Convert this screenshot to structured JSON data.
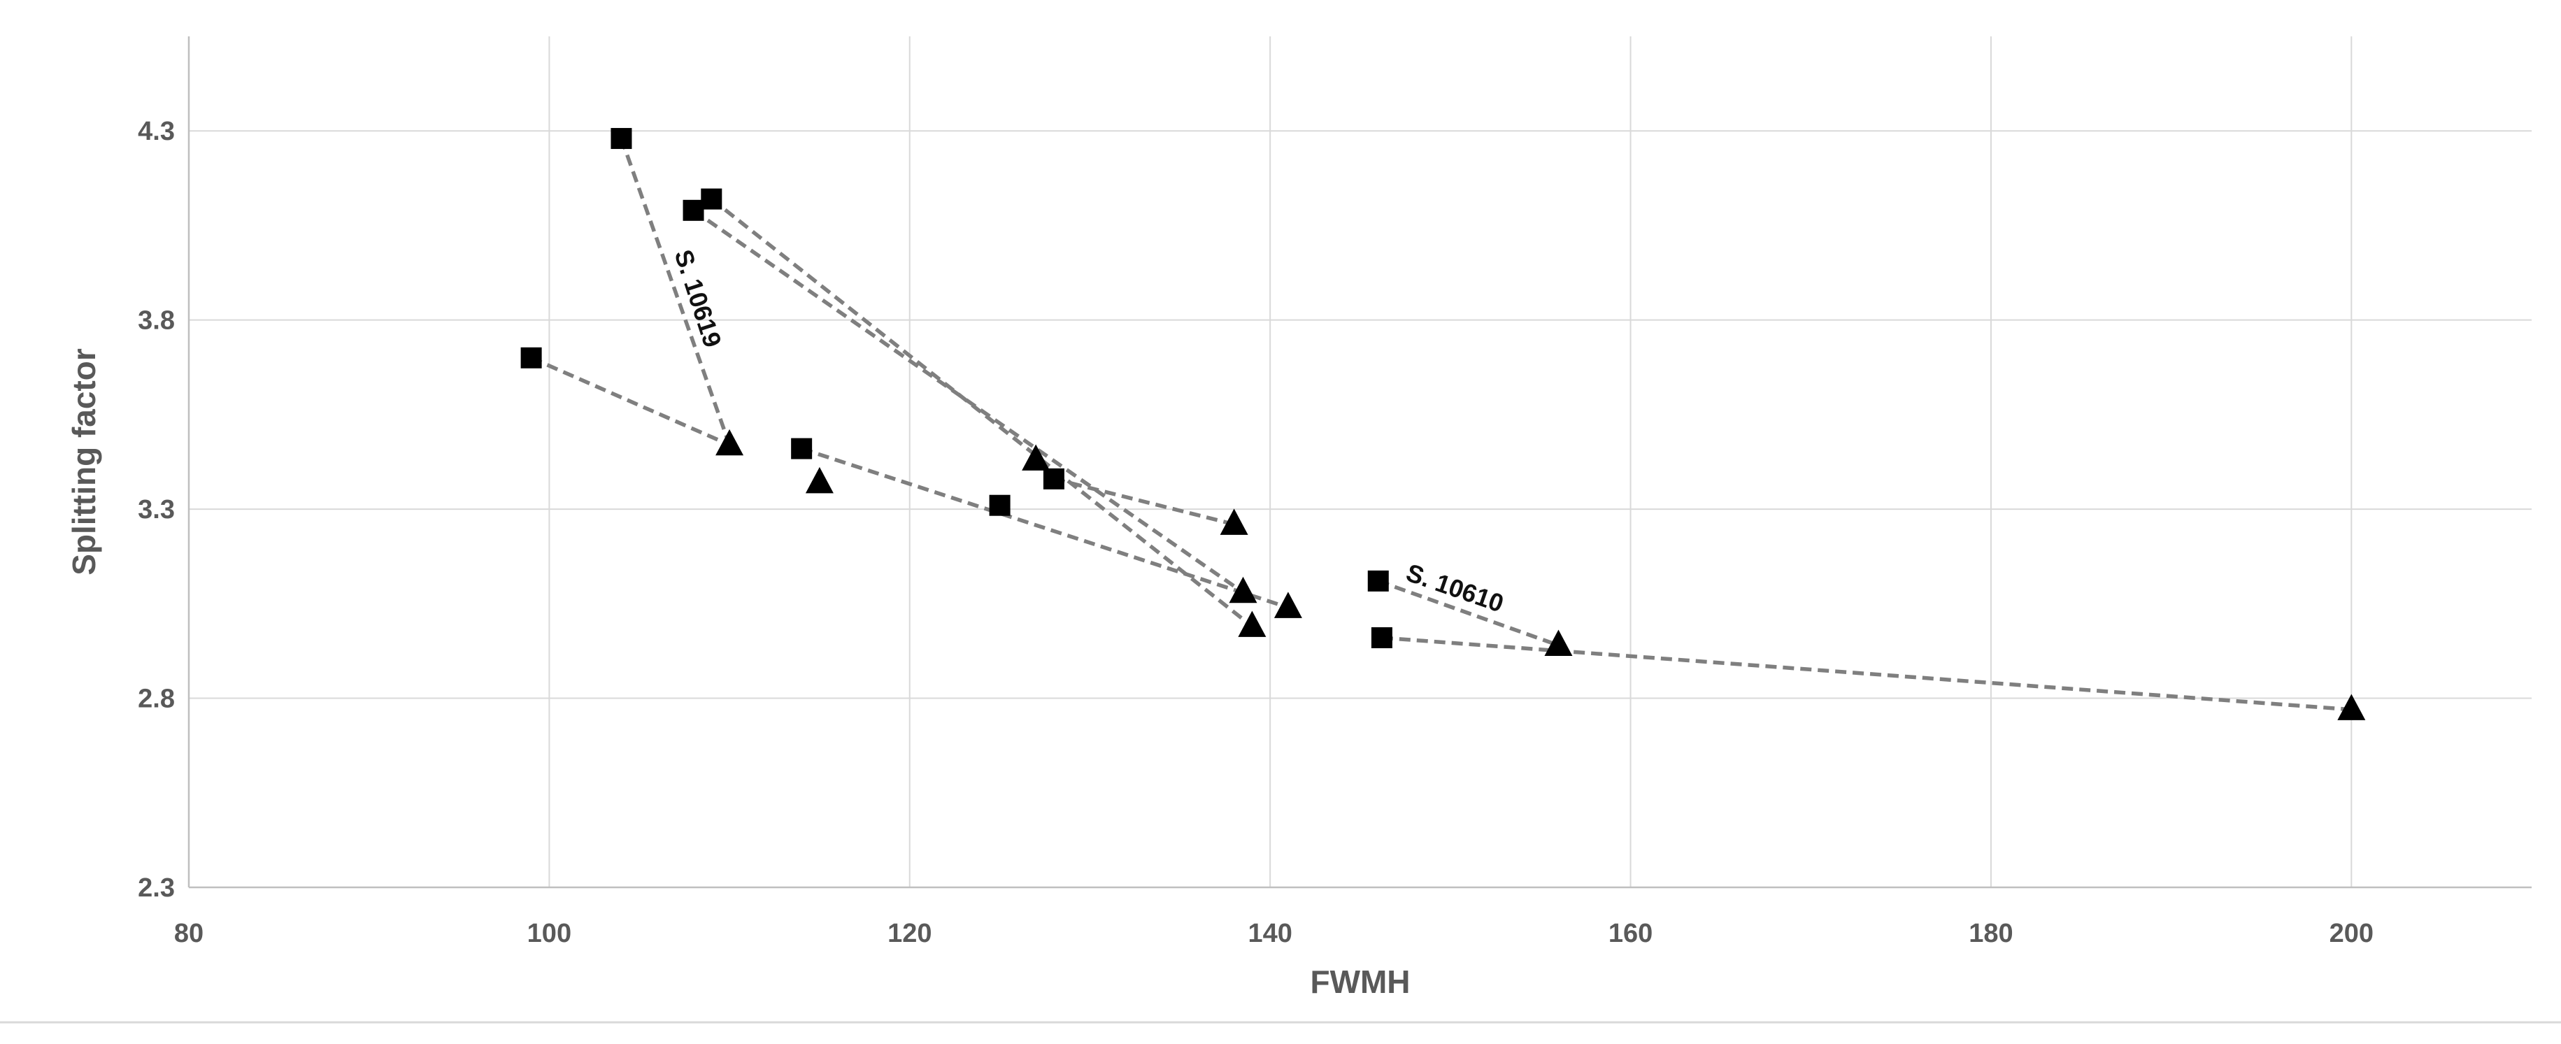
{
  "chart_data": {
    "type": "scatter",
    "title": "",
    "xlabel": "FWMH",
    "ylabel": "Splitting factor",
    "xlim": [
      80,
      210
    ],
    "ylim": [
      2.3,
      4.55
    ],
    "x_ticks": [
      80,
      100,
      120,
      140,
      160,
      180,
      200
    ],
    "y_ticks": [
      2.3,
      2.8,
      3.3,
      3.8,
      4.3
    ],
    "x_tick_labels": [
      "80",
      "100",
      "120",
      "140",
      "160",
      "180",
      "200"
    ],
    "y_tick_labels": [
      "2.3",
      "2.8",
      "3.3",
      "3.8",
      "4.3"
    ],
    "grid": true,
    "legend": "none",
    "marker_color": "#000000",
    "line_color": "#7f7f7f",
    "squares": [
      {
        "x": 99,
        "y": 3.7
      },
      {
        "x": 104,
        "y": 4.28
      },
      {
        "x": 108,
        "y": 4.09
      },
      {
        "x": 109,
        "y": 4.12
      },
      {
        "x": 114,
        "y": 3.46
      },
      {
        "x": 125,
        "y": 3.31
      },
      {
        "x": 128,
        "y": 3.38
      },
      {
        "x": 146,
        "y": 3.11
      },
      {
        "x": 146.2,
        "y": 2.96
      }
    ],
    "triangles": [
      {
        "x": 110,
        "y": 3.47
      },
      {
        "x": 115,
        "y": 3.37
      },
      {
        "x": 127,
        "y": 3.43
      },
      {
        "x": 138,
        "y": 3.26
      },
      {
        "x": 138.5,
        "y": 3.08
      },
      {
        "x": 139,
        "y": 2.99
      },
      {
        "x": 141,
        "y": 3.04
      },
      {
        "x": 156,
        "y": 2.94
      },
      {
        "x": 200,
        "y": 2.77
      }
    ],
    "connections": [
      {
        "from": [
          104,
          4.28
        ],
        "to": [
          110,
          3.47
        ]
      },
      {
        "from": [
          99,
          3.7
        ],
        "to": [
          110,
          3.47
        ]
      },
      {
        "from": [
          114,
          3.46
        ],
        "to": [
          141,
          3.04
        ]
      },
      {
        "from": [
          108,
          4.09
        ],
        "to": [
          138.5,
          3.08
        ]
      },
      {
        "from": [
          109,
          4.12
        ],
        "to": [
          139,
          2.99
        ]
      },
      {
        "from": [
          128,
          3.38
        ],
        "to": [
          138,
          3.26
        ]
      },
      {
        "from": [
          146,
          3.11
        ],
        "to": [
          156,
          2.94
        ]
      },
      {
        "from": [
          146.2,
          2.96
        ],
        "to": [
          200,
          2.77
        ]
      }
    ],
    "annotations": [
      {
        "text": "S. 10619",
        "x": 107.8,
        "y": 3.85,
        "rotate": 72
      },
      {
        "text": "S. 10610",
        "x": 150.1,
        "y": 3.07,
        "rotate": 19
      }
    ]
  }
}
